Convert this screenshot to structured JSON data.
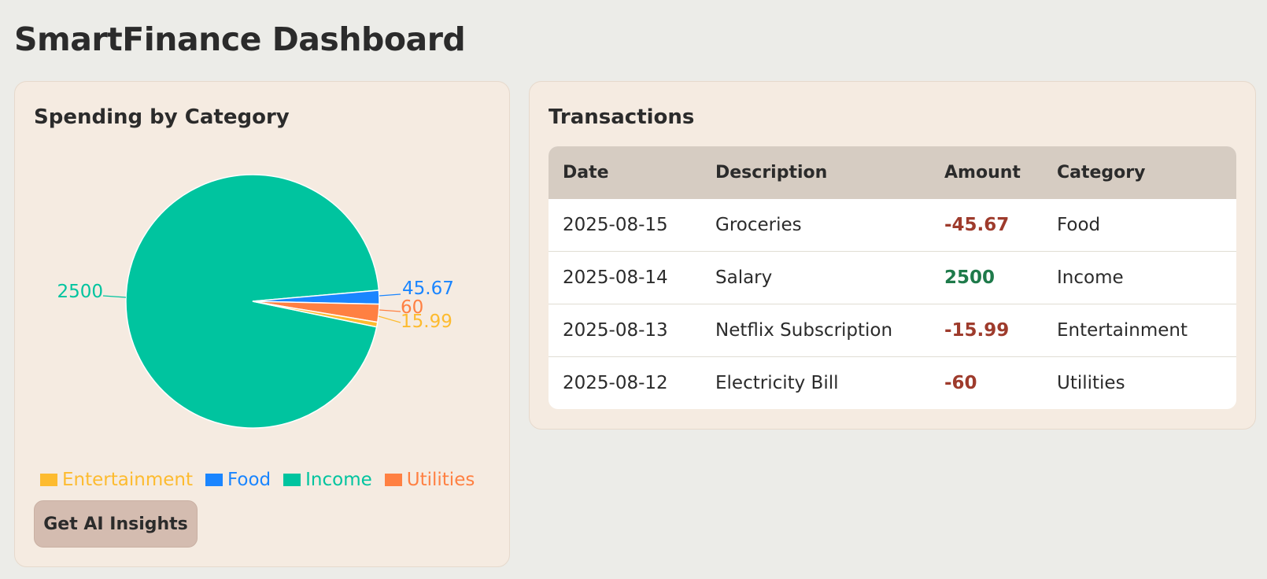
{
  "page": {
    "title": "SmartFinance Dashboard"
  },
  "colors": {
    "Entertainment": "#fdbb2f",
    "Food": "#1a85ff",
    "Income": "#00c49f",
    "Utilities": "#ff8042",
    "negative_amount": "#9e3b2c",
    "positive_amount": "#1e7a4a"
  },
  "spending_card": {
    "title": "Spending by Category",
    "button_label": "Get AI Insights"
  },
  "chart_data": {
    "type": "pie",
    "title": "Spending by Category",
    "legend_position": "bottom",
    "slices": [
      {
        "name": "Entertainment",
        "value": 15.99,
        "label": "15.99",
        "color": "#fdbb2f"
      },
      {
        "name": "Food",
        "value": 45.67,
        "label": "45.67",
        "color": "#1a85ff"
      },
      {
        "name": "Income",
        "value": 2500,
        "label": "2500",
        "color": "#00c49f"
      },
      {
        "name": "Utilities",
        "value": 60,
        "label": "60",
        "color": "#ff8042"
      }
    ]
  },
  "transactions": {
    "title": "Transactions",
    "columns": [
      "Date",
      "Description",
      "Amount",
      "Category"
    ],
    "rows": [
      {
        "date": "2025-08-15",
        "description": "Groceries",
        "amount": "-45.67",
        "category": "Food"
      },
      {
        "date": "2025-08-14",
        "description": "Salary",
        "amount": "2500",
        "category": "Income"
      },
      {
        "date": "2025-08-13",
        "description": "Netflix Subscription",
        "amount": "-15.99",
        "category": "Entertainment"
      },
      {
        "date": "2025-08-12",
        "description": "Electricity Bill",
        "amount": "-60",
        "category": "Utilities"
      }
    ]
  }
}
